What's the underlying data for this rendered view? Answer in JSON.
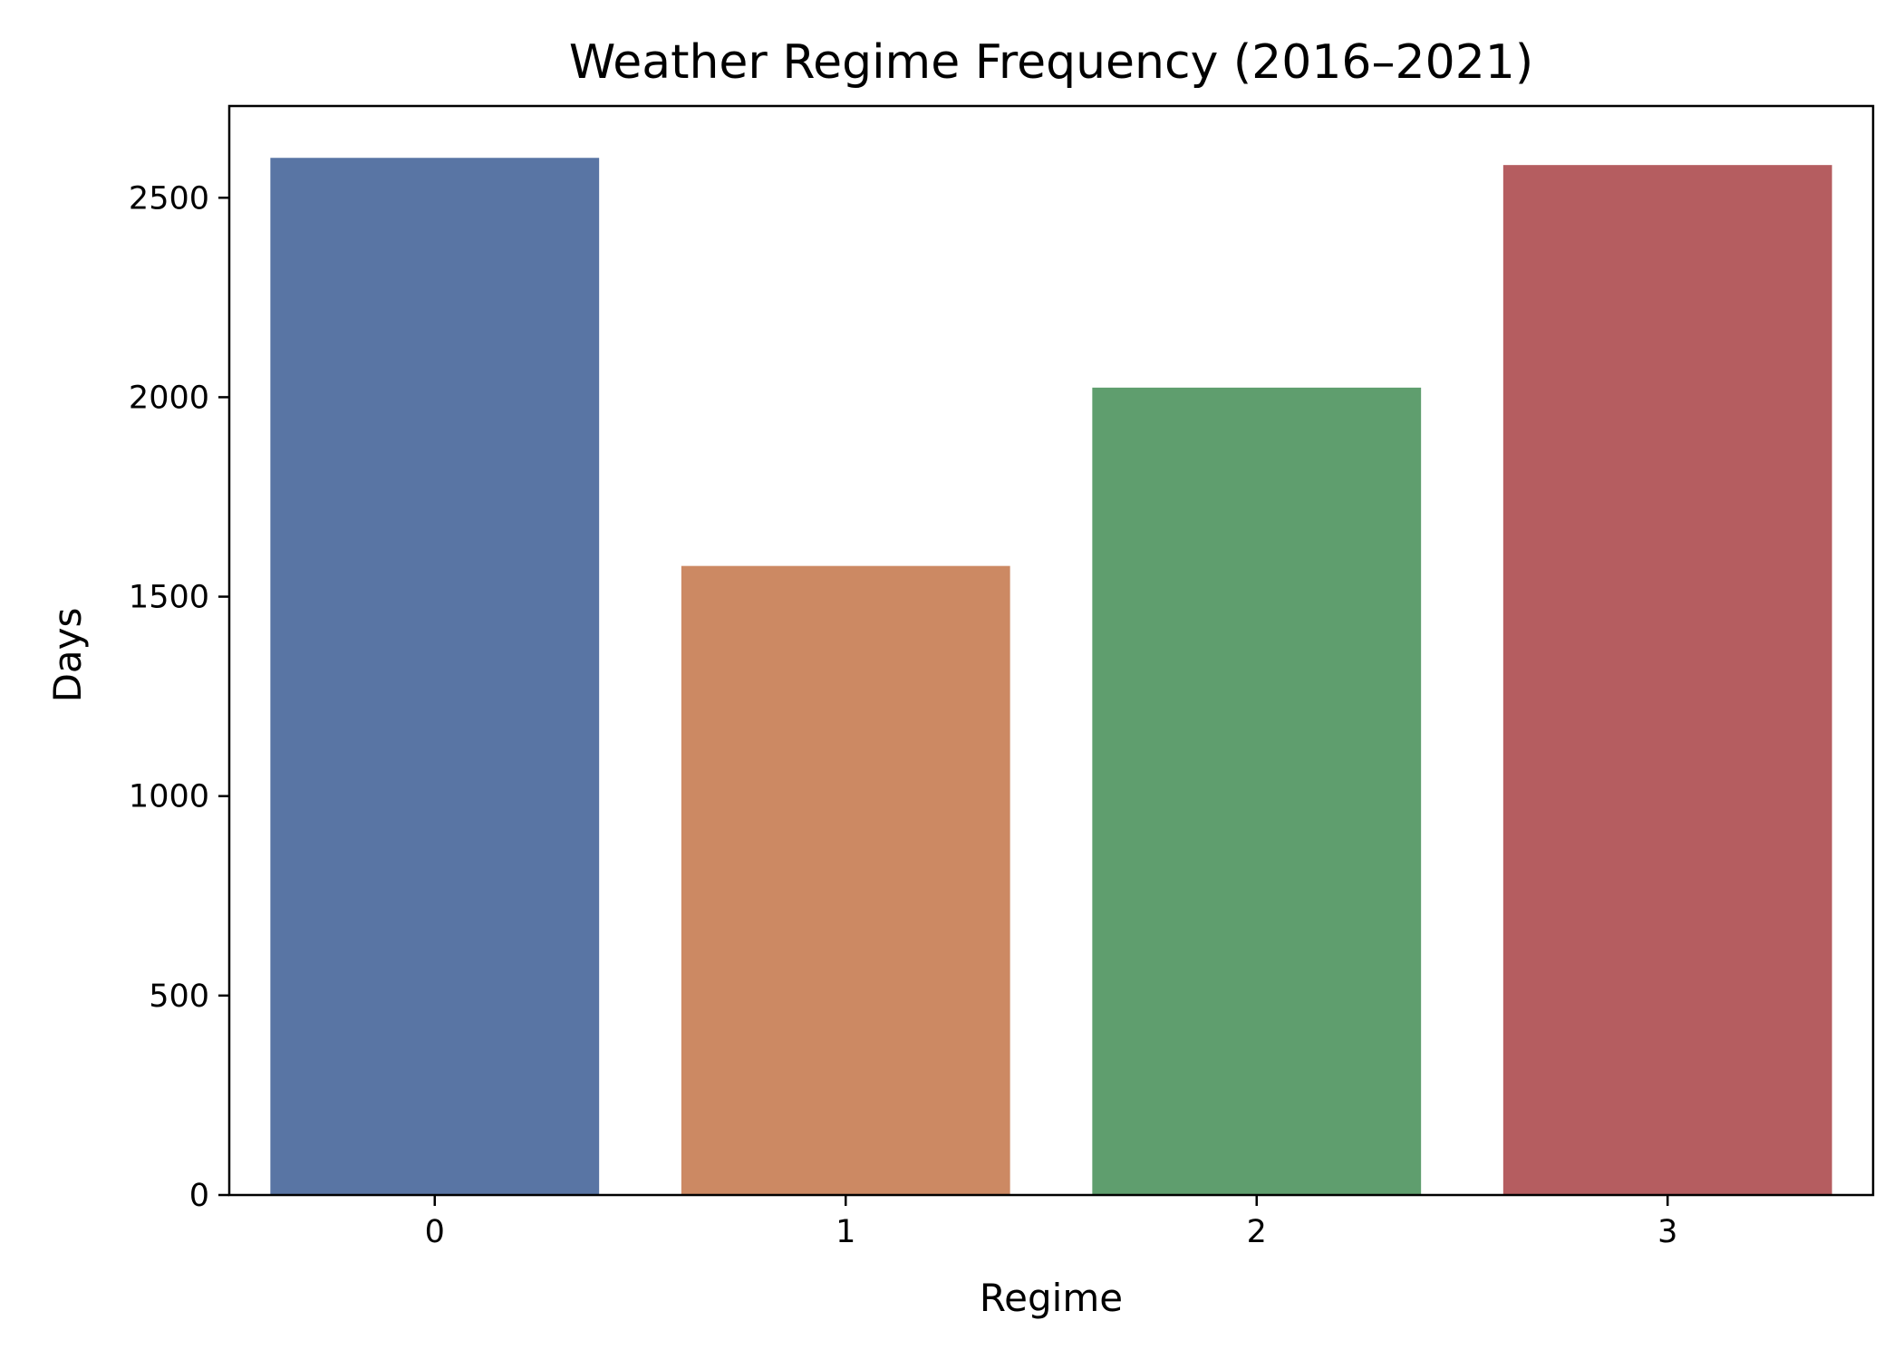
{
  "chart_data": {
    "type": "bar",
    "title": "Weather Regime Frequency (2016–2021)",
    "xlabel": "Regime",
    "ylabel": "Days",
    "categories": [
      "0",
      "1",
      "2",
      "3"
    ],
    "values": [
      2600,
      1577,
      2024,
      2582
    ],
    "colors": [
      "#5975a4",
      "#cc8963",
      "#5f9e6e",
      "#b55d60"
    ],
    "ylim": [
      0,
      2730
    ],
    "yticks": [
      0,
      500,
      1000,
      1500,
      2000,
      2500
    ],
    "grid": false,
    "legend": "none"
  }
}
